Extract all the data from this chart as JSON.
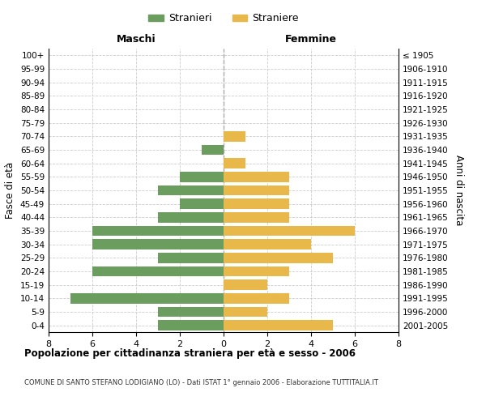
{
  "age_groups": [
    "0-4",
    "5-9",
    "10-14",
    "15-19",
    "20-24",
    "25-29",
    "30-34",
    "35-39",
    "40-44",
    "45-49",
    "50-54",
    "55-59",
    "60-64",
    "65-69",
    "70-74",
    "75-79",
    "80-84",
    "85-89",
    "90-94",
    "95-99",
    "100+"
  ],
  "birth_years": [
    "2001-2005",
    "1996-2000",
    "1991-1995",
    "1986-1990",
    "1981-1985",
    "1976-1980",
    "1971-1975",
    "1966-1970",
    "1961-1965",
    "1956-1960",
    "1951-1955",
    "1946-1950",
    "1941-1945",
    "1936-1940",
    "1931-1935",
    "1926-1930",
    "1921-1925",
    "1916-1920",
    "1911-1915",
    "1906-1910",
    "≤ 1905"
  ],
  "maschi": [
    3,
    3,
    7,
    0,
    6,
    3,
    6,
    6,
    3,
    2,
    3,
    2,
    0,
    1,
    0,
    0,
    0,
    0,
    0,
    0,
    0
  ],
  "femmine": [
    5,
    2,
    3,
    2,
    3,
    5,
    4,
    6,
    3,
    3,
    3,
    3,
    1,
    0,
    1,
    0,
    0,
    0,
    0,
    0,
    0
  ],
  "maschi_color": "#6b9e5e",
  "femmine_color": "#e8b84b",
  "title": "Popolazione per cittadinanza straniera per età e sesso - 2006",
  "subtitle": "COMUNE DI SANTO STEFANO LODIGIANO (LO) - Dati ISTAT 1° gennaio 2006 - Elaborazione TUTTITALIA.IT",
  "ylabel_left": "Fasce di età",
  "ylabel_right": "Anni di nascita",
  "xlim": 8,
  "legend_stranieri": "Stranieri",
  "legend_straniere": "Straniere",
  "maschi_label": "Maschi",
  "femmine_label": "Femmine",
  "bg_color": "#ffffff",
  "grid_color": "#cccccc",
  "bar_height": 0.75
}
